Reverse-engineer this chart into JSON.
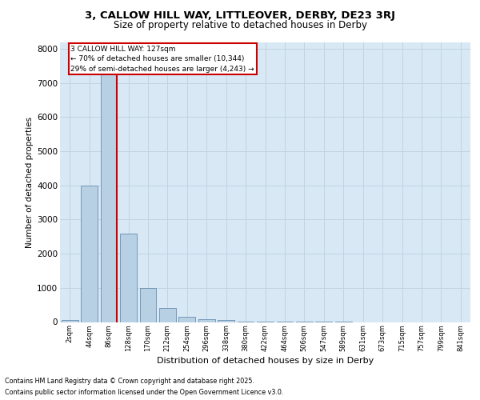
{
  "title1": "3, CALLOW HILL WAY, LITTLEOVER, DERBY, DE23 3RJ",
  "title2": "Size of property relative to detached houses in Derby",
  "xlabel": "Distribution of detached houses by size in Derby",
  "ylabel": "Number of detached properties",
  "categories": [
    "2sqm",
    "44sqm",
    "86sqm",
    "128sqm",
    "170sqm",
    "212sqm",
    "254sqm",
    "296sqm",
    "338sqm",
    "380sqm",
    "422sqm",
    "464sqm",
    "506sqm",
    "547sqm",
    "589sqm",
    "631sqm",
    "673sqm",
    "715sqm",
    "757sqm",
    "799sqm",
    "841sqm"
  ],
  "values": [
    50,
    4000,
    7300,
    2600,
    1000,
    400,
    150,
    80,
    50,
    10,
    5,
    3,
    2,
    1,
    1,
    0,
    0,
    0,
    0,
    0,
    0
  ],
  "bar_color": "#b8d0e4",
  "bar_edge_color": "#5580a8",
  "property_line_color": "#cc0000",
  "property_line_x": 2.425,
  "annotation_title": "3 CALLOW HILL WAY: 127sqm",
  "annotation_line1": "← 70% of detached houses are smaller (10,344)",
  "annotation_line2": "29% of semi-detached houses are larger (4,243) →",
  "annotation_box_color": "#cc0000",
  "ylim": [
    0,
    8200
  ],
  "yticks": [
    0,
    1000,
    2000,
    3000,
    4000,
    5000,
    6000,
    7000,
    8000
  ],
  "grid_color": "#c0d4e4",
  "bg_color": "#d8e8f4",
  "footer1": "Contains HM Land Registry data © Crown copyright and database right 2025.",
  "footer2": "Contains public sector information licensed under the Open Government Licence v3.0."
}
